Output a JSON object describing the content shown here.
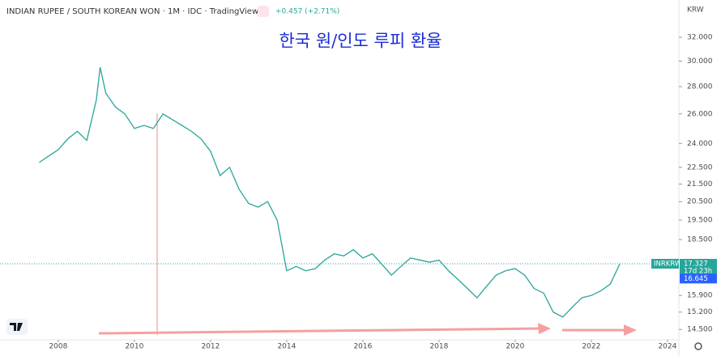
{
  "header": {
    "symbol": "INDIAN RUPEE / SOUTH KOREAN WON · 1M · IDC · TradingView",
    "change": "+0.457 (+2.71%)",
    "currency": "KRW"
  },
  "chart_data": {
    "type": "line",
    "title": "한국 원/인도 루피 환율",
    "log_scale": true,
    "color": "#26a69a",
    "x": [
      2007.5,
      2007.75,
      2008.0,
      2008.25,
      2008.5,
      2008.75,
      2009.0,
      2009.1,
      2009.25,
      2009.5,
      2009.75,
      2010.0,
      2010.25,
      2010.5,
      2010.75,
      2011.0,
      2011.25,
      2011.5,
      2011.75,
      2012.0,
      2012.25,
      2012.5,
      2012.75,
      2013.0,
      2013.25,
      2013.5,
      2013.75,
      2014.0,
      2014.25,
      2014.5,
      2014.75,
      2015.0,
      2015.25,
      2015.5,
      2015.75,
      2016.0,
      2016.25,
      2016.5,
      2016.75,
      2017.0,
      2017.25,
      2017.5,
      2017.75,
      2018.0,
      2018.25,
      2018.5,
      2018.75,
      2019.0,
      2019.25,
      2019.5,
      2019.75,
      2020.0,
      2020.25,
      2020.5,
      2020.75,
      2021.0,
      2021.25,
      2021.5,
      2021.75,
      2022.0,
      2022.25,
      2022.5,
      2022.75
    ],
    "values": [
      22.8,
      23.2,
      23.6,
      24.3,
      24.8,
      24.2,
      27,
      29.5,
      27.5,
      26.5,
      26,
      25,
      25.2,
      25,
      26,
      25.6,
      25.2,
      24.8,
      24.3,
      23.5,
      22,
      22.5,
      21.2,
      20.4,
      20.2,
      20.5,
      19.5,
      17,
      17.2,
      17,
      17.1,
      17.5,
      17.8,
      17.7,
      18,
      17.6,
      17.8,
      17.3,
      16.8,
      17.2,
      17.6,
      17.5,
      17.4,
      17.5,
      17,
      16.6,
      16.2,
      15.8,
      16.3,
      16.8,
      17,
      17.1,
      16.8,
      16.2,
      16,
      15.2,
      15,
      15.4,
      15.8,
      15.9,
      16.1,
      16.4,
      17.327
    ],
    "xlim": [
      2006.47,
      2024.3
    ],
    "xticks": [
      2008,
      2010,
      2012,
      2014,
      2016,
      2018,
      2020,
      2022,
      2024
    ],
    "ylim": [
      14.1,
      35.4
    ],
    "yticks": [
      {
        "value": 14.5,
        "label": "14.500"
      },
      {
        "value": 15.2,
        "label": "15.200"
      },
      {
        "value": 15.9,
        "label": "15.900"
      },
      {
        "value": 18.5,
        "label": "18.500"
      },
      {
        "value": 19.5,
        "label": "19.500"
      },
      {
        "value": 20.5,
        "label": "20.500"
      },
      {
        "value": 21.5,
        "label": "21.500"
      },
      {
        "value": 22.5,
        "label": "22.500"
      },
      {
        "value": 24,
        "label": "24.000"
      },
      {
        "value": 26,
        "label": "26.000"
      },
      {
        "value": 28,
        "label": "28.000"
      },
      {
        "value": 30,
        "label": "30.000"
      },
      {
        "value": 32,
        "label": "32.000"
      }
    ],
    "last_label": "INRKRW",
    "last_value": 17.327,
    "countdown": "17d 23h",
    "ma_value": 16.645
  }
}
